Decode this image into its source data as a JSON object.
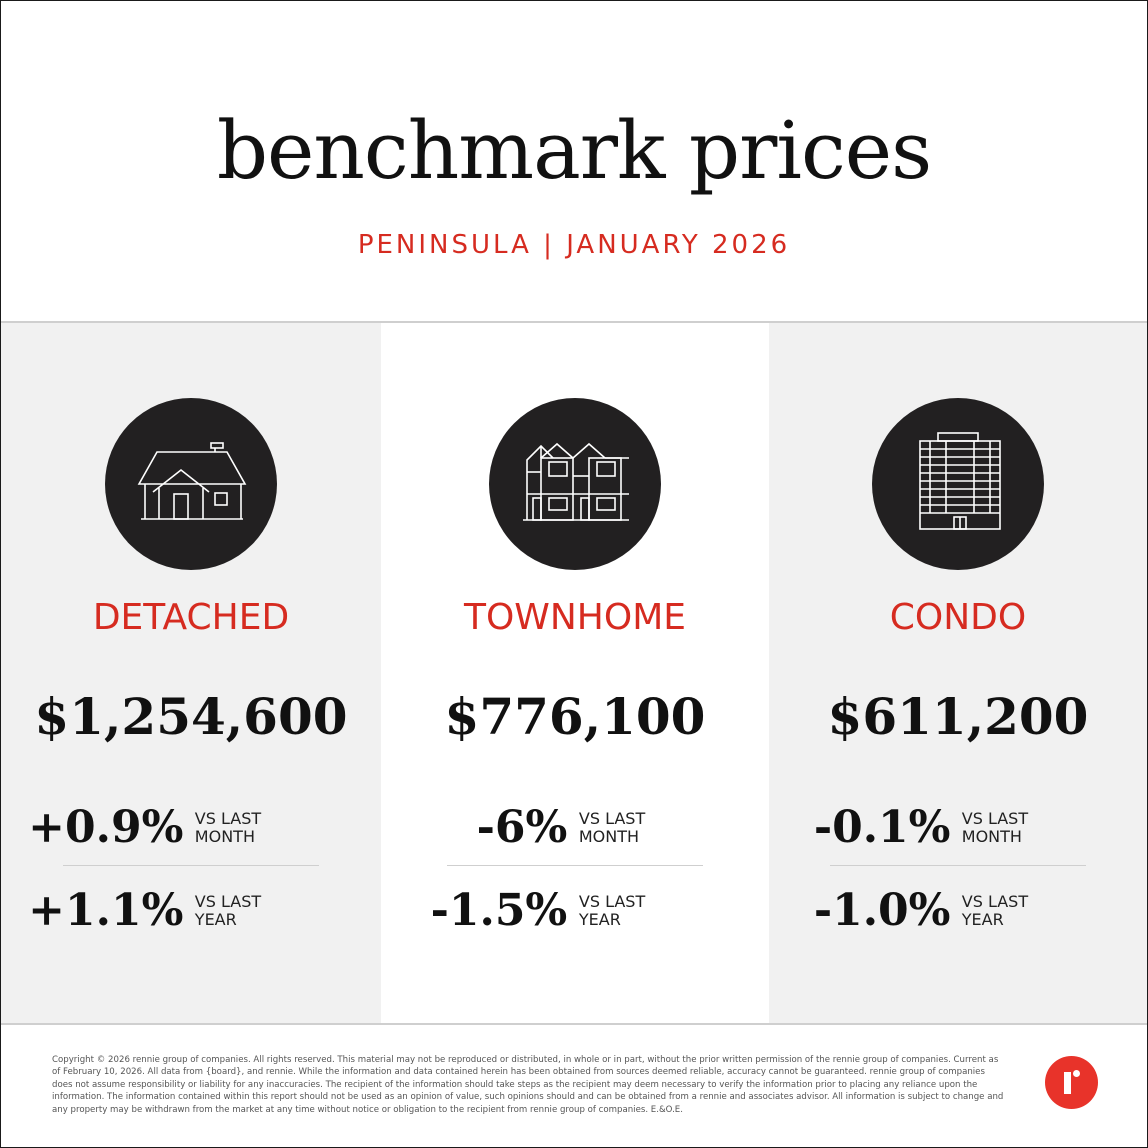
{
  "header": {
    "title": "benchmark prices",
    "subtitle": "PENINSULA | JANUARY 2026"
  },
  "colors": {
    "accent": "#d62b20",
    "icon_circle": "#222021",
    "panel_gray": "#f1f1f1",
    "logo": "#e8332a"
  },
  "columns": [
    {
      "icon": "house-icon",
      "type": "DETACHED",
      "price": "$1,254,600",
      "month_change": "+0.9%",
      "month_label_1": "VS LAST",
      "month_label_2": "MONTH",
      "year_change": "+1.1%",
      "year_label_1": "VS LAST",
      "year_label_2": "YEAR"
    },
    {
      "icon": "townhome-icon",
      "type": "TOWNHOME",
      "price": "$776,100",
      "month_change": "-6%",
      "month_label_1": "VS LAST",
      "month_label_2": "MONTH",
      "year_change": "-1.5%",
      "year_label_1": "VS LAST",
      "year_label_2": "YEAR"
    },
    {
      "icon": "condo-building-icon",
      "type": "CONDO",
      "price": "$611,200",
      "month_change": "-0.1%",
      "month_label_1": "VS LAST",
      "month_label_2": "MONTH",
      "year_change": "-1.0%",
      "year_label_1": "VS LAST",
      "year_label_2": "YEAR"
    }
  ],
  "footer": {
    "disclaimer": "Copyright © 2026 rennie group of companies. All rights reserved. This material may not be reproduced or distributed, in whole or in part, without the prior written permission of the rennie group of companies. Current as of February 10, 2026. All data from {board}, and rennie. While the information and data contained herein has been obtained from sources deemed reliable, accuracy cannot be guaranteed. rennie group of companies does not assume responsibility or liability for any inaccuracies. The recipient of the information should take steps as the recipient may deem necessary to verify the information prior to placing any reliance upon the information. The information contained within this report should not be used as an opinion of value, such opinions should and can be obtained from a rennie and associates advisor. All information is subject to change and any property may be withdrawn from the market at any time without notice or obligation to the recipient from rennie group of companies. E.&O.E.",
    "logo_icon": "rennie-logo-icon"
  }
}
